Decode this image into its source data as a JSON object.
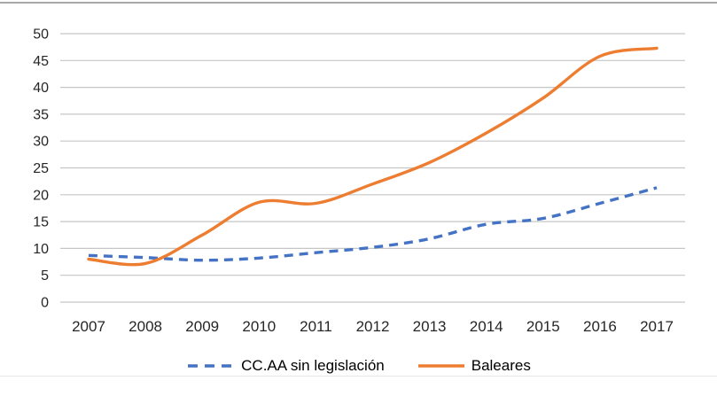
{
  "chart_data": {
    "type": "line",
    "x": [
      "2007",
      "2008",
      "2009",
      "2010",
      "2011",
      "2012",
      "2013",
      "2014",
      "2015",
      "2016",
      "2017"
    ],
    "series": [
      {
        "name": "CC.AA sin legislación",
        "values": [
          8.7,
          8.3,
          7.8,
          8.2,
          9.2,
          10.2,
          11.8,
          14.5,
          15.6,
          18.4,
          21.3
        ],
        "color": "#4472C4",
        "style": "dashed"
      },
      {
        "name": "Baleares",
        "values": [
          8.0,
          7.2,
          12.5,
          18.6,
          18.4,
          22.0,
          26.0,
          31.5,
          38.0,
          45.8,
          47.3
        ],
        "color": "#ED7D31",
        "style": "solid"
      }
    ],
    "title": "",
    "xlabel": "",
    "ylabel": "",
    "ylim": [
      0,
      50
    ],
    "yticks": [
      0,
      5,
      10,
      15,
      20,
      25,
      30,
      35,
      40,
      45,
      50
    ],
    "grid": true,
    "smooth_lines": true,
    "legend_position": "bottom"
  },
  "colors": {
    "accent_blue": "#4472C4",
    "accent_orange": "#ED7D31",
    "gridline": "#C6C6C6",
    "axis_text": "#262626",
    "top_border": "#A8A8A8",
    "bottom_divider": "#E7E7E7"
  }
}
